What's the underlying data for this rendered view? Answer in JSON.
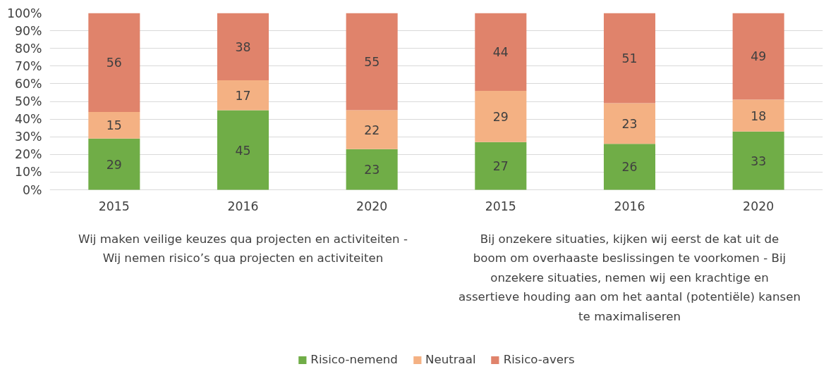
{
  "chart_data": {
    "type": "bar",
    "stacked": true,
    "categories": [
      "2015",
      "2016",
      "2020",
      "2015",
      "2016",
      "2020"
    ],
    "series": [
      {
        "name": "Risico-nemend",
        "color": "#70ad47",
        "values": [
          29,
          45,
          23,
          27,
          26,
          33
        ]
      },
      {
        "name": "Neutraal",
        "color": "#f4b183",
        "values": [
          15,
          17,
          22,
          29,
          23,
          18
        ]
      },
      {
        "name": "Risico-avers",
        "color": "#e0836b",
        "values": [
          56,
          38,
          55,
          44,
          51,
          49
        ]
      }
    ],
    "ylim": [
      0,
      100
    ],
    "yticks": [
      {
        "value": 0,
        "label": "0%"
      },
      {
        "value": 10,
        "label": "10%"
      },
      {
        "value": 20,
        "label": "20%"
      },
      {
        "value": 30,
        "label": "30%"
      },
      {
        "value": 40,
        "label": "40%"
      },
      {
        "value": 50,
        "label": "50%"
      },
      {
        "value": 60,
        "label": "60%"
      },
      {
        "value": 70,
        "label": "70%"
      },
      {
        "value": 80,
        "label": "80%"
      },
      {
        "value": 90,
        "label": "90%"
      },
      {
        "value": 100,
        "label": "100%"
      }
    ],
    "annotations": [
      "Wij maken veilige keuzes qua projecten en activiteiten - Wij nemen risico’s qua projecten en activiteiten",
      "Bij onzekere situaties, kijken wij eerst de kat uit de boom om overhaaste beslissingen te voorkomen - Bij onzekere situaties, nemen wij een krachtige en assertieve houding aan om het aantal (potentiële) kansen te maximaliseren"
    ],
    "data_labels": true,
    "grid": "y",
    "legend": "bottom"
  }
}
